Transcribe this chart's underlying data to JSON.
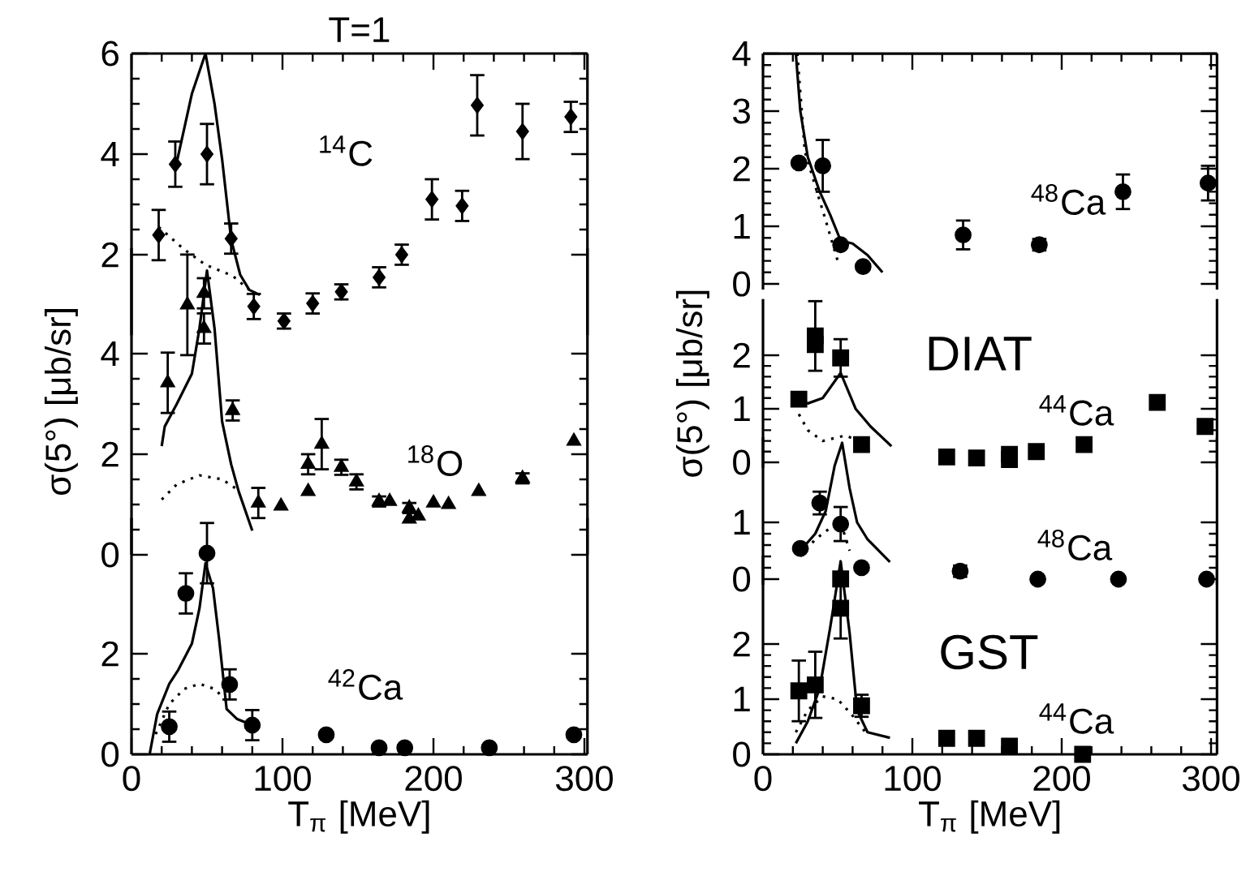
{
  "chart_data": [
    {
      "type": "scatter",
      "title": "T=1",
      "xlim": [
        0,
        302
      ],
      "xticks": [
        0,
        100,
        200,
        300
      ],
      "ylim": [
        0.4,
        6
      ],
      "yticks": [
        2,
        4,
        6
      ],
      "tick_labels": "y",
      "series": [
        {
          "type": "scatter",
          "name": "$^{14}$C",
          "color": "#000000",
          "marker": "diamond",
          "x": [
            18,
            29,
            50,
            66,
            81,
            101,
            120,
            139,
            164,
            179,
            199,
            219,
            229,
            259,
            291
          ],
          "values": [
            2.39,
            3.8,
            4.0,
            2.32,
            0.97,
            0.68,
            1.03,
            1.26,
            1.55,
            2.0,
            3.1,
            2.97,
            4.97,
            4.45,
            4.74
          ],
          "errors": [
            0.5,
            0.45,
            0.6,
            0.3,
            0.25,
            0.15,
            0.2,
            0.15,
            0.2,
            0.2,
            0.4,
            0.3,
            0.6,
            0.55,
            0.3
          ]
        },
        {
          "type": "line",
          "line_style": "solid",
          "color": "#000000",
          "x": [
            30,
            40,
            49,
            55,
            60,
            66,
            72,
            78,
            85
          ],
          "values": [
            3.84,
            5.2,
            6.0,
            5.0,
            3.9,
            2.3,
            1.6,
            1.3,
            1.2
          ]
        },
        {
          "type": "line",
          "line_style": "dotted",
          "color": "#000000",
          "x": [
            18,
            35,
            49,
            67,
            78
          ],
          "values": [
            2.55,
            2.1,
            1.8,
            1.58,
            1.3
          ]
        }
      ]
    },
    {
      "type": "scatter",
      "ylabel": "σ(5°)  [μb/sr]",
      "xlim": [
        0,
        302
      ],
      "ylim": [
        0,
        6.1
      ],
      "yticks": [
        0,
        2,
        4
      ],
      "tick_labels": "y",
      "series": [
        {
          "type": "scatter",
          "name": "$^{18}$O",
          "color": "#000000",
          "marker": "triangle",
          "x": [
            24,
            37,
            48,
            48,
            67,
            84,
            99,
            117,
            117,
            126,
            139,
            149,
            164,
            171,
            184,
            184,
            190,
            200,
            210,
            230,
            259,
            293
          ],
          "values": [
            3.42,
            4.97,
            4.5,
            5.2,
            2.87,
            1.03,
            0.97,
            1.8,
            1.26,
            2.2,
            1.74,
            1.45,
            1.06,
            1.06,
            0.93,
            0.71,
            0.77,
            1.03,
            1.0,
            1.26,
            1.52,
            2.26
          ],
          "errors": [
            0.6,
            1.0,
            0.3,
            0.3,
            0.2,
            0.3,
            null,
            0.2,
            null,
            0.5,
            0.15,
            0.15,
            0.1,
            null,
            0.1,
            null,
            null,
            null,
            null,
            null,
            0.1,
            null
          ]
        },
        {
          "type": "line",
          "line_style": "solid",
          "color": "#000000",
          "x": [
            20,
            22,
            30,
            40,
            45,
            50,
            55,
            60,
            66,
            71,
            80
          ],
          "values": [
            2.16,
            2.55,
            3.0,
            3.6,
            4.5,
            5.65,
            4.5,
            2.65,
            1.8,
            1.26,
            0.48
          ]
        },
        {
          "type": "line",
          "line_style": "dotted",
          "color": "#000000",
          "x": [
            20,
            30,
            45,
            60,
            70
          ],
          "values": [
            1.1,
            1.4,
            1.58,
            1.5,
            1.3
          ]
        }
      ]
    },
    {
      "type": "scatter",
      "xlabel": "T$_{π}$  [MeV]",
      "xlim": [
        0,
        302
      ],
      "xticks": [
        0,
        100,
        200,
        300
      ],
      "ylim": [
        0,
        4.7
      ],
      "yticks": [
        0,
        2
      ],
      "series": [
        {
          "type": "scatter",
          "name": "$^{42}$Ca",
          "color": "#000000",
          "marker": "circle",
          "x": [
            25,
            36,
            50,
            65,
            80,
            129,
            164,
            181,
            237,
            293
          ],
          "values": [
            0.55,
            3.2,
            4.0,
            1.39,
            0.58,
            0.39,
            0.13,
            0.13,
            0.13,
            0.39
          ],
          "errors": [
            0.3,
            0.4,
            0.6,
            0.3,
            0.3,
            null,
            null,
            null,
            null,
            null
          ]
        },
        {
          "type": "line",
          "line_style": "solid",
          "color": "#000000",
          "x": [
            12,
            17,
            25,
            31,
            40,
            45,
            49,
            54,
            58,
            63,
            70,
            80
          ],
          "values": [
            0,
            0.8,
            1.4,
            1.68,
            2.2,
            2.9,
            3.8,
            3.3,
            2.3,
            0.9,
            0.7,
            0.58
          ]
        },
        {
          "type": "line",
          "line_style": "dotted",
          "color": "#000000",
          "x": [
            16,
            25,
            35,
            45,
            55,
            65
          ],
          "values": [
            0.4,
            1.0,
            1.3,
            1.4,
            1.3,
            1.0
          ]
        }
      ]
    },
    {
      "type": "scatter",
      "xlim": [
        0,
        304
      ],
      "xticks": [
        0,
        100,
        200,
        300
      ],
      "ylim": [
        -0.1,
        4
      ],
      "yticks": [
        0,
        1,
        2,
        3,
        4
      ],
      "tick_labels": "y",
      "series": [
        {
          "type": "scatter",
          "name": "$^{48}$Ca",
          "color": "#000000",
          "marker": "circle",
          "x": [
            24,
            40,
            52,
            67,
            134,
            185,
            241,
            298
          ],
          "values": [
            2.1,
            2.05,
            0.68,
            0.3,
            0.85,
            0.68,
            1.6,
            1.75
          ],
          "errors": [
            null,
            0.45,
            null,
            null,
            0.25,
            0.1,
            0.3,
            0.3
          ]
        },
        {
          "type": "line",
          "line_style": "solid",
          "color": "#000000",
          "x": [
            22,
            25,
            30,
            38,
            45,
            52,
            60,
            70,
            80
          ],
          "values": [
            4.0,
            3.0,
            2.2,
            1.6,
            1.2,
            0.75,
            0.7,
            0.5,
            0.2
          ]
        },
        {
          "type": "line",
          "line_style": "dotted",
          "color": "#000000",
          "x": [
            23,
            28,
            35,
            42,
            50
          ],
          "values": [
            4.0,
            2.3,
            1.7,
            1.1,
            0.4
          ]
        }
      ]
    },
    {
      "type": "scatter",
      "ylabel": "σ(5°)  [μb/sr]",
      "annotations": [
        "DIAT"
      ],
      "xlim": [
        0,
        304
      ],
      "ylim": [
        -0.1,
        3.05
      ],
      "yticks": [
        0,
        1,
        2
      ],
      "tick_labels": "y",
      "series": [
        {
          "type": "scatter",
          "name": "$^{44}$Ca",
          "color": "#000000",
          "marker": "square",
          "x": [
            24,
            35,
            35,
            52,
            66,
            123,
            143,
            165,
            165,
            183,
            215,
            264,
            296
          ],
          "values": [
            1.18,
            2.36,
            2.2,
            1.95,
            0.33,
            0.1,
            0.08,
            0.15,
            0.05,
            0.2,
            0.33,
            1.12,
            0.67
          ],
          "errors": [
            null,
            0.65,
            null,
            0.35,
            null,
            null,
            null,
            null,
            null,
            null,
            null,
            0.1,
            null
          ]
        },
        {
          "type": "line",
          "line_style": "solid",
          "color": "#000000",
          "x": [
            22,
            30,
            40,
            52,
            62,
            72,
            86
          ],
          "values": [
            1.2,
            1.1,
            1.2,
            1.67,
            1.0,
            0.67,
            0.3
          ]
        },
        {
          "type": "line",
          "line_style": "dotted",
          "color": "#000000",
          "x": [
            24,
            30,
            40,
            55,
            65
          ],
          "values": [
            0.9,
            0.6,
            0.4,
            0.5,
            0.4
          ]
        }
      ]
    },
    {
      "type": "scatter",
      "xlim": [
        0,
        304
      ],
      "ylim": [
        -0.1,
        2.5
      ],
      "yticks": [
        0,
        1
      ],
      "tick_labels": "y",
      "series": [
        {
          "type": "scatter",
          "name": "$^{48}$Ca",
          "color": "#000000",
          "marker": "circle",
          "x": [
            25,
            38,
            52,
            66,
            132,
            184,
            238,
            297
          ],
          "values": [
            0.54,
            1.34,
            0.97,
            0.2,
            0.14,
            0,
            0,
            0
          ],
          "errors": [
            null,
            0.2,
            0.3,
            null,
            0.1,
            null,
            null,
            null
          ]
        },
        {
          "type": "line",
          "line_style": "solid",
          "color": "#000000",
          "x": [
            25,
            35,
            42,
            48,
            53,
            58,
            63,
            70,
            85
          ],
          "values": [
            0.5,
            0.8,
            1.2,
            2.0,
            2.4,
            1.6,
            1.0,
            0.7,
            0.3
          ]
        },
        {
          "type": "line",
          "line_style": "dotted",
          "color": "#000000",
          "x": [
            25,
            35,
            45,
            52,
            58
          ],
          "values": [
            0.4,
            0.7,
            0.9,
            1.0,
            0.5
          ]
        }
      ]
    },
    {
      "type": "scatter",
      "xlabel": "T$_{π}$  [MeV]",
      "annotations": [
        "GST"
      ],
      "xlim": [
        0,
        304
      ],
      "xticks": [
        0,
        100,
        200,
        300
      ],
      "ylim": [
        0,
        3.6
      ],
      "yticks": [
        0,
        1,
        2
      ],
      "series": [
        {
          "type": "scatter",
          "name": "$^{44}$Ca",
          "color": "#000000",
          "marker": "square",
          "x": [
            24,
            35,
            52,
            52,
            66,
            123,
            143,
            165,
            214
          ],
          "values": [
            1.15,
            1.26,
            2.65,
            3.18,
            0.88,
            0.29,
            0.29,
            0.15,
            0.0
          ],
          "errors": [
            0.55,
            0.6,
            0.55,
            null,
            0.2,
            null,
            null,
            null,
            null
          ]
        },
        {
          "type": "line",
          "line_style": "solid",
          "color": "#000000",
          "x": [
            22,
            30,
            38,
            45,
            52,
            58,
            63,
            70,
            85
          ],
          "values": [
            0.2,
            0.6,
            1.2,
            2.3,
            3.5,
            2.2,
            0.8,
            0.4,
            0.3
          ]
        },
        {
          "type": "line",
          "line_style": "dotted",
          "color": "#000000",
          "x": [
            22,
            30,
            40,
            50,
            60,
            70
          ],
          "values": [
            0.4,
            0.8,
            1.05,
            1.0,
            0.7,
            0.35
          ]
        }
      ]
    }
  ]
}
